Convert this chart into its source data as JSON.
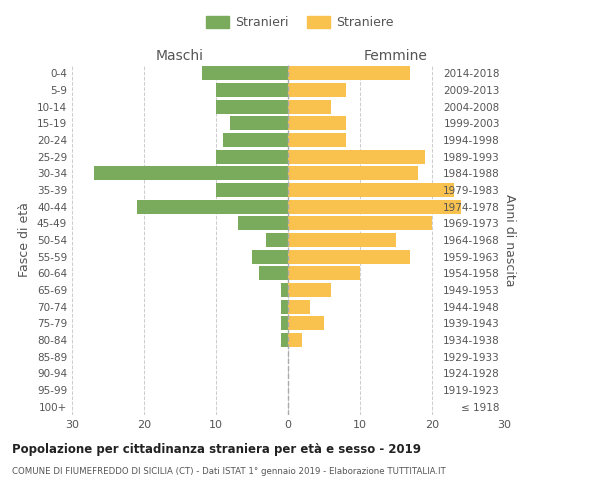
{
  "age_groups": [
    "100+",
    "95-99",
    "90-94",
    "85-89",
    "80-84",
    "75-79",
    "70-74",
    "65-69",
    "60-64",
    "55-59",
    "50-54",
    "45-49",
    "40-44",
    "35-39",
    "30-34",
    "25-29",
    "20-24",
    "15-19",
    "10-14",
    "5-9",
    "0-4"
  ],
  "birth_years": [
    "≤ 1918",
    "1919-1923",
    "1924-1928",
    "1929-1933",
    "1934-1938",
    "1939-1943",
    "1944-1948",
    "1949-1953",
    "1954-1958",
    "1959-1963",
    "1964-1968",
    "1969-1973",
    "1974-1978",
    "1979-1983",
    "1984-1988",
    "1989-1993",
    "1994-1998",
    "1999-2003",
    "2004-2008",
    "2009-2013",
    "2014-2018"
  ],
  "maschi": [
    0,
    0,
    0,
    0,
    1,
    1,
    1,
    1,
    4,
    5,
    3,
    7,
    21,
    10,
    27,
    10,
    9,
    8,
    10,
    10,
    12
  ],
  "femmine": [
    0,
    0,
    0,
    0,
    2,
    5,
    3,
    6,
    10,
    17,
    15,
    20,
    24,
    23,
    18,
    19,
    8,
    8,
    6,
    8,
    17
  ],
  "maschi_color": "#7aaa5c",
  "femmine_color": "#f9c14e",
  "title": "Popolazione per cittadinanza straniera per età e sesso - 2019",
  "subtitle": "COMUNE DI FIUMEFREDDO DI SICILIA (CT) - Dati ISTAT 1° gennaio 2019 - Elaborazione TUTTITALIA.IT",
  "xlabel_maschi": "Maschi",
  "xlabel_femmine": "Femmine",
  "ylabel_left": "Fasce di età",
  "ylabel_right": "Anni di nascita",
  "xlim": 30,
  "legend_stranieri": "Stranieri",
  "legend_straniere": "Straniere",
  "bg_color": "#ffffff",
  "grid_color": "#cccccc",
  "bar_height": 0.85,
  "text_color": "#555555"
}
